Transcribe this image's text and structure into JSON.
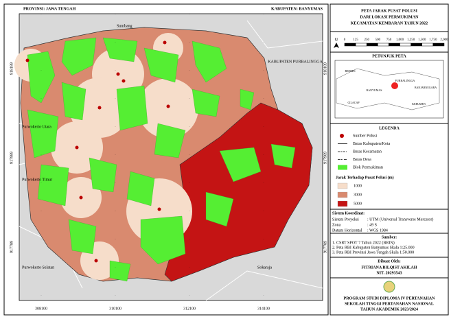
{
  "map_frame": {
    "top_left": "PROVINSI: JAWA TENGAH",
    "top_right": "KABUPATEN: BANYUMAS",
    "places": [
      "Sumbang",
      "KABUPATEN PURBALINGGA",
      "Purwokerto Utara",
      "Purwokerto Timur",
      "Purwokerto Selatan",
      "Sokaraja"
    ],
    "x_ticks": [
      "308100",
      "310100",
      "312100",
      "314100"
    ],
    "y_ticks": [
      "918189",
      "917989",
      "917789"
    ]
  },
  "title": [
    "PETA JARAK PUSAT POLUSI",
    "DARI LOKASI PERMUKIMAN",
    "KECAMATAN KEMBARAN TAHUN 2022"
  ],
  "north": "U",
  "scale_labels": [
    "0",
    "125",
    "250",
    "500",
    "750",
    "1,000",
    "1,250",
    "1,500",
    "1,750",
    "2,000"
  ],
  "inset": {
    "heading": "PETUNJUK PETA",
    "labels": [
      "BREBES",
      "PURBALINGGA",
      "BANJARNEGARA",
      "BANYUMAS",
      "CILACAP",
      "KEBUMEN"
    ]
  },
  "legend": {
    "heading": "LEGENDA",
    "items": [
      "Sumber Polusi",
      "Batas Kabupaten/Kota",
      "Batas Kecamatan",
      "Batas Desa",
      "Blok Permukiman"
    ],
    "distance_heading": "Jarak Terhadap Pusat Polusi (m)",
    "distances": [
      "1000",
      "3000",
      "5000"
    ]
  },
  "coordinate_system": {
    "heading": "Sistem Koordinat:",
    "rows": [
      [
        "Sistem Proyeksi",
        ": UTM (Universal Transverse Mercator)"
      ],
      [
        "Zona",
        ": 49 S"
      ],
      [
        "Datum Horizontal",
        ": WGS 1984"
      ]
    ]
  },
  "sources": {
    "heading": "Sumber:",
    "items": [
      "1. CSRT SPOT 7 Tahun 2022 (BRIN)",
      "2. Peta RBI Kabupaten Banyumas Skala 1:25.000",
      "3. Peta RBI Provinsi Jawa Tengah Skala 1:50.000"
    ]
  },
  "author": {
    "heading": "Dibuat Oleh:",
    "name": "FITRIANA BILQIST AKILAH",
    "id": "NIT. 20293543"
  },
  "institution": [
    "PROGRAM STUDI DIPLOMA IV PERTANAHAN",
    "SEKOLAH TINGGI PERTANAHAN NASIONAL",
    "TAHUN AKADEMIK 2023/2024"
  ]
}
